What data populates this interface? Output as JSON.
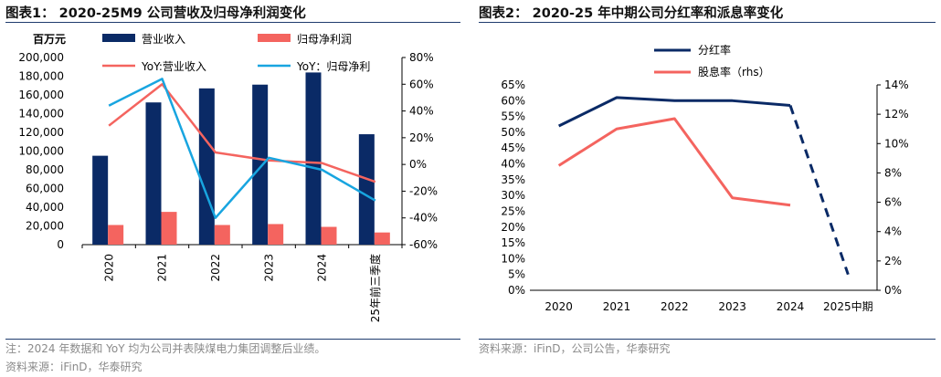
{
  "left": {
    "title": "图表1：  2020-25M9 公司营收及归母净利润变化",
    "note": "注：2024 年数据和 YoY 均为公司并表陕煤电力集团调整后业绩。",
    "source": "资料来源：iFinD，华泰研究"
  },
  "right": {
    "title": "图表2：  2020-25 年中期公司分红率和派息率变化",
    "source": "资料来源：iFinD，公司公告，华泰研究"
  },
  "colors": {
    "navy": "#0a2a66",
    "salmon": "#f4645f",
    "sky": "#18a5e0",
    "rule": "#1f3b6e"
  },
  "chart_data": [
    {
      "type": "bar",
      "categories": [
        "2020",
        "2021",
        "2022",
        "2023",
        "2024",
        "25年前三季度"
      ],
      "unit_label": "百万元",
      "y_left_ticks": [
        "0",
        "20,000",
        "40,000",
        "60,000",
        "80,000",
        "100,000",
        "120,000",
        "140,000",
        "160,000",
        "180,000",
        "200,000"
      ],
      "y_right_ticks": [
        "-60%",
        "-40%",
        "-20%",
        "0%",
        "20%",
        "40%",
        "60%",
        "80%"
      ],
      "ylim_left": [
        0,
        200000
      ],
      "ylim_right": [
        -60,
        80
      ],
      "series": [
        {
          "name": "营业收入",
          "kind": "bar",
          "axis": "left",
          "color": "#0a2a66",
          "values": [
            95000,
            152000,
            167000,
            171000,
            184000,
            118000
          ]
        },
        {
          "name": "归母净利润",
          "kind": "bar",
          "axis": "left",
          "color": "#f4645f",
          "values": [
            21000,
            35000,
            21000,
            22000,
            19000,
            13000
          ]
        },
        {
          "name": "YoY:营业收入",
          "kind": "line",
          "axis": "right",
          "color": "#f4645f",
          "values": [
            29,
            60,
            9,
            3,
            1,
            -13
          ]
        },
        {
          "name": "YoY：归母净利",
          "kind": "line",
          "axis": "right",
          "color": "#18a5e0",
          "values": [
            44,
            64,
            -40,
            5,
            -4,
            -27
          ]
        }
      ]
    },
    {
      "type": "line",
      "categories": [
        "2020",
        "2021",
        "2022",
        "2023",
        "2024",
        "2025中期"
      ],
      "y_left_ticks": [
        "0%",
        "5%",
        "10%",
        "15%",
        "20%",
        "25%",
        "30%",
        "35%",
        "40%",
        "45%",
        "50%",
        "55%",
        "60%",
        "65%"
      ],
      "y_right_ticks": [
        "0%",
        "2%",
        "4%",
        "6%",
        "8%",
        "10%",
        "12%",
        "14%"
      ],
      "ylim_left": [
        0,
        65
      ],
      "ylim_right": [
        0,
        14
      ],
      "series": [
        {
          "name": "分红率",
          "axis": "left",
          "color": "#0a2a66",
          "values": [
            52,
            61,
            60,
            60,
            58.5,
            5
          ],
          "dashed_from_index": 4
        },
        {
          "name": "股息率（rhs）",
          "axis": "right",
          "color": "#f4645f",
          "values": [
            8.5,
            11,
            11.7,
            6.3,
            5.8,
            null
          ]
        }
      ]
    }
  ]
}
